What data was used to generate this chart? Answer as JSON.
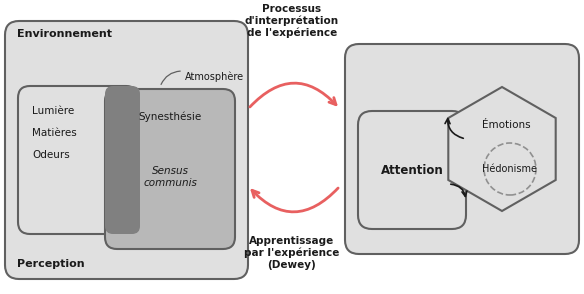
{
  "bg_color": "#e0e0e0",
  "dark_gray": "#606060",
  "medium_gray": "#909090",
  "overlap_gray": "#808080",
  "inner_right_bg": "#b8b8b8",
  "arrow_color": "#e86060",
  "text_dark": "#1a1a1a",
  "environnement_label": "Environnement",
  "perception_label": "Perception",
  "lumiere": "Lumière",
  "matieres": "Matières",
  "odeurs": "Odeurs",
  "atmosphere": "Atmosphère",
  "synesthesie": "Synesthésie",
  "sensus": "Sensus\ncommunis",
  "processus": "Processus\nd'interprétation\nde l'expérience",
  "apprentissage": "Apprentissage\npar l'expérience\n(Dewey)",
  "attention": "Attention",
  "emotions": "Émotions",
  "hedonisme": "Hédonisme",
  "fig_w": 5.84,
  "fig_h": 2.94,
  "dpi": 100
}
